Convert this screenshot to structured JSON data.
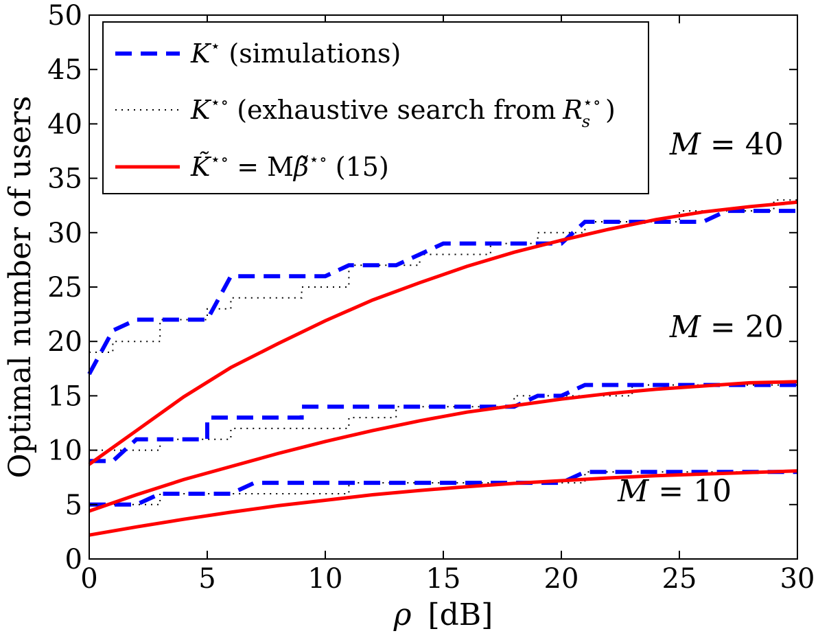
{
  "chart_data": {
    "type": "line",
    "xlabel": {
      "symbol": "ρ",
      "unit": "[dB]"
    },
    "ylabel": "Optimal number of users",
    "xlim": [
      0,
      30
    ],
    "ylim": [
      0,
      50
    ],
    "xticks": [
      0,
      5,
      10,
      15,
      20,
      25,
      30
    ],
    "yticks": [
      0,
      5,
      10,
      15,
      20,
      25,
      30,
      35,
      40,
      45,
      50
    ],
    "grid": false,
    "legend_position": "top-left",
    "legend": [
      {
        "id": "sim",
        "label_main": "K",
        "label_sup": "⋆",
        "label_rest": "(simulations)",
        "color": "#0000ff",
        "style": "dashed"
      },
      {
        "id": "exh",
        "label_main": "K",
        "label_sup": "⋆∘",
        "label_rest": "(exhaustive search from",
        "label_var": "R",
        "label_var_sub": "s",
        "label_var_sup": "⋆∘",
        "label_end": ")",
        "color": "#000000",
        "style": "dotted"
      },
      {
        "id": "approx",
        "label_main": "K̃",
        "label_sup": "⋆∘",
        "label_mid": "= M",
        "label_beta": "β̃",
        "label_beta_sup": "⋆∘",
        "label_end": "(15)",
        "color": "#ff0000",
        "style": "solid"
      }
    ],
    "annotations": [
      {
        "text": "M = 40",
        "x": 27.0,
        "y": 37.2
      },
      {
        "text": "M = 20",
        "x": 27.0,
        "y": 20.4
      },
      {
        "text": "M = 10",
        "x": 24.8,
        "y": 5.3
      }
    ],
    "series": [
      {
        "style": "dotted",
        "color": "#000000",
        "x": [
          0,
          1,
          1,
          2,
          2,
          3,
          3,
          4,
          4,
          5,
          5,
          6,
          6,
          7,
          7,
          8,
          8,
          9,
          9,
          10,
          10,
          11,
          11,
          12,
          12,
          13,
          13,
          14,
          14,
          15,
          15,
          16,
          16,
          17,
          17,
          18,
          18,
          19,
          19,
          20,
          20,
          21,
          21,
          22,
          22,
          23,
          23,
          24,
          24,
          25,
          25,
          26,
          26,
          27,
          27,
          28,
          28,
          29,
          29,
          30
        ],
        "y": [
          19,
          19,
          20,
          20,
          20,
          20,
          22,
          22,
          22,
          22,
          23,
          23,
          24,
          24,
          24,
          24,
          24,
          24,
          25,
          25,
          25,
          25,
          27,
          27,
          27,
          27,
          27,
          27,
          28,
          28,
          28,
          28,
          28,
          28,
          29,
          29,
          29,
          29,
          30,
          30,
          30,
          30,
          31,
          31,
          31,
          31,
          31,
          31,
          31,
          31,
          32,
          32,
          32,
          32,
          32,
          32,
          32,
          32,
          33,
          33
        ]
      },
      {
        "style": "dotted",
        "color": "#000000",
        "x": [
          0,
          1,
          1,
          2,
          2,
          3,
          3,
          4,
          4,
          5,
          5,
          6,
          6,
          7,
          7,
          8,
          8,
          9,
          9,
          10,
          10,
          11,
          11,
          12,
          12,
          13,
          13,
          14,
          14,
          15,
          15,
          16,
          16,
          17,
          17,
          18,
          18,
          19,
          19,
          20,
          20,
          21,
          21,
          22,
          22,
          23,
          23,
          24,
          24,
          25,
          25,
          26,
          26,
          27,
          27,
          28,
          28,
          29,
          29,
          30
        ],
        "y": [
          10,
          10,
          10,
          10,
          10,
          10,
          11,
          11,
          11,
          11,
          11,
          11,
          12,
          12,
          12,
          12,
          12,
          12,
          12,
          12,
          12,
          12,
          13,
          13,
          13,
          13,
          14,
          14,
          14,
          14,
          14,
          14,
          14,
          14,
          14,
          14,
          15,
          15,
          15,
          15,
          15,
          15,
          15,
          15,
          15,
          15,
          16,
          16,
          16,
          16,
          16,
          16,
          16,
          16,
          16,
          16,
          16,
          16,
          16,
          16
        ]
      },
      {
        "style": "dotted",
        "color": "#000000",
        "x": [
          0,
          1,
          1,
          2,
          2,
          3,
          3,
          4,
          4,
          5,
          5,
          6,
          6,
          7,
          7,
          8,
          8,
          9,
          9,
          10,
          10,
          11,
          11,
          12,
          12,
          13,
          13,
          14,
          14,
          15,
          15,
          16,
          16,
          17,
          17,
          18,
          18,
          19,
          19,
          20,
          20,
          21,
          21,
          22,
          22,
          23,
          23,
          24,
          24,
          25,
          25,
          26,
          26,
          27,
          27,
          28,
          28,
          29,
          29,
          30
        ],
        "y": [
          5,
          5,
          5,
          5,
          5,
          5,
          6,
          6,
          6,
          6,
          6,
          6,
          6,
          6,
          6,
          6,
          6,
          6,
          6,
          6,
          6,
          6,
          7,
          7,
          7,
          7,
          7,
          7,
          7,
          7,
          7,
          7,
          7,
          7,
          7,
          7,
          7,
          7,
          7,
          7,
          7,
          7,
          8,
          8,
          8,
          8,
          8,
          8,
          8,
          8,
          8,
          8,
          8,
          8,
          8,
          8,
          8,
          8,
          8,
          8
        ]
      },
      {
        "name": "K⋆ (simulations)",
        "style": "dashed",
        "color": "#0000ff",
        "x": [
          0,
          1,
          1,
          2,
          2,
          3,
          3,
          4,
          4,
          5,
          5,
          6,
          6,
          7,
          7,
          8,
          8,
          9,
          9,
          10,
          10,
          11,
          11,
          12,
          12,
          13,
          13,
          14,
          14,
          15,
          15,
          16,
          16,
          17,
          17,
          18,
          18,
          19,
          19,
          20,
          20,
          21,
          21,
          22,
          22,
          23,
          23,
          24,
          24,
          25,
          25,
          26,
          26,
          27,
          27,
          28,
          28,
          29,
          29,
          30
        ],
        "y": [
          17,
          21,
          21,
          22,
          22,
          22,
          22,
          22,
          22,
          22,
          22,
          26,
          26,
          26,
          26,
          26,
          26,
          26,
          26,
          26,
          26,
          27,
          27,
          27,
          27,
          27,
          27,
          28,
          28,
          29,
          29,
          29,
          29,
          29,
          29,
          29,
          29,
          29,
          29,
          29,
          29,
          31,
          31,
          31,
          31,
          31,
          31,
          31,
          31,
          31,
          31,
          31,
          31,
          32,
          32,
          32,
          32,
          32,
          32,
          32
        ]
      },
      {
        "name": "K⋆ (simulations)",
        "style": "dashed",
        "color": "#0000ff",
        "x": [
          0,
          1,
          1,
          2,
          2,
          3,
          3,
          4,
          4,
          5,
          5,
          6,
          6,
          7,
          7,
          8,
          8,
          9,
          9,
          10,
          10,
          11,
          11,
          12,
          12,
          13,
          13,
          14,
          14,
          15,
          15,
          16,
          16,
          17,
          17,
          18,
          18,
          19,
          19,
          20,
          20,
          21,
          21,
          22,
          22,
          23,
          23,
          24,
          24,
          25,
          25,
          26,
          26,
          27,
          27,
          28,
          28,
          29,
          29,
          30
        ],
        "y": [
          9,
          9,
          9,
          11,
          11,
          11,
          11,
          11,
          11,
          11,
          13,
          13,
          13,
          13,
          13,
          13,
          13,
          13,
          14,
          14,
          14,
          14,
          14,
          14,
          14,
          14,
          14,
          14,
          14,
          14,
          14,
          14,
          14,
          14,
          14,
          14,
          14,
          15,
          15,
          15,
          15,
          16,
          16,
          16,
          16,
          16,
          16,
          16,
          16,
          16,
          16,
          16,
          16,
          16,
          16,
          16,
          16,
          16,
          16,
          16
        ]
      },
      {
        "name": "K⋆ (simulations)",
        "style": "dashed",
        "color": "#0000ff",
        "x": [
          0,
          1,
          1,
          2,
          2,
          3,
          3,
          4,
          4,
          5,
          5,
          6,
          6,
          7,
          7,
          8,
          8,
          9,
          9,
          10,
          10,
          11,
          11,
          12,
          12,
          13,
          13,
          14,
          14,
          15,
          15,
          16,
          16,
          17,
          17,
          18,
          18,
          19,
          19,
          20,
          20,
          21,
          21,
          22,
          22,
          23,
          23,
          24,
          24,
          25,
          25,
          26,
          26,
          27,
          27,
          28,
          28,
          29,
          29,
          30
        ],
        "y": [
          5,
          5,
          5,
          5,
          5,
          6,
          6,
          6,
          6,
          6,
          6,
          6,
          6,
          7,
          7,
          7,
          7,
          7,
          7,
          7,
          7,
          7,
          7,
          7,
          7,
          7,
          7,
          7,
          7,
          7,
          7,
          7,
          7,
          7,
          7,
          7,
          7,
          7,
          7,
          7,
          7,
          8,
          8,
          8,
          8,
          8,
          8,
          8,
          8,
          8,
          8,
          8,
          8,
          8,
          8,
          8,
          8,
          8,
          8,
          8
        ]
      },
      {
        "name": "K̃⋆∘ = Mβ̃⋆∘ (15)",
        "style": "solid",
        "color": "#ff0000",
        "x": [
          0,
          2,
          4,
          6,
          8,
          10,
          12,
          14,
          16,
          18,
          20,
          22,
          24,
          26,
          28,
          30
        ],
        "y": [
          8.7,
          11.8,
          14.9,
          17.6,
          19.8,
          21.9,
          23.8,
          25.4,
          26.9,
          28.2,
          29.3,
          30.3,
          31.2,
          31.9,
          32.4,
          32.8
        ]
      },
      {
        "name": "K̃⋆∘ = Mβ̃⋆∘ (15)",
        "style": "solid",
        "color": "#ff0000",
        "x": [
          0,
          2,
          4,
          6,
          8,
          10,
          12,
          14,
          16,
          18,
          20,
          22,
          24,
          26,
          28,
          30
        ],
        "y": [
          4.4,
          5.9,
          7.3,
          8.5,
          9.7,
          10.8,
          11.8,
          12.7,
          13.5,
          14.1,
          14.7,
          15.2,
          15.6,
          15.9,
          16.2,
          16.3
        ]
      },
      {
        "name": "K̃⋆∘ = Mβ̃⋆∘ (15)",
        "style": "solid",
        "color": "#ff0000",
        "x": [
          0,
          2,
          4,
          6,
          8,
          10,
          12,
          14,
          16,
          18,
          20,
          22,
          24,
          26,
          28,
          30
        ],
        "y": [
          2.2,
          2.95,
          3.65,
          4.3,
          4.9,
          5.4,
          5.9,
          6.3,
          6.65,
          6.95,
          7.2,
          7.45,
          7.65,
          7.8,
          7.95,
          8.1
        ]
      }
    ]
  }
}
